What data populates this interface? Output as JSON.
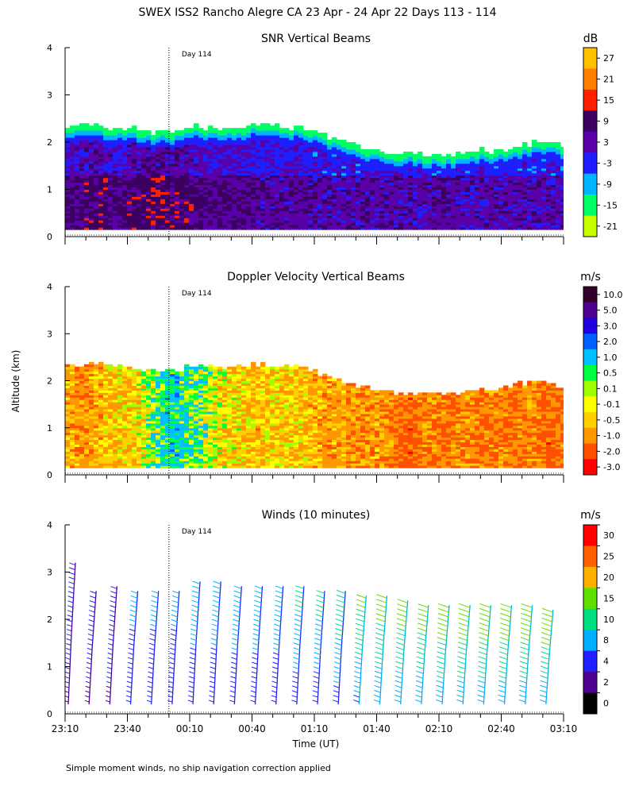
{
  "figure_title": "SWEX ISS2 Rancho Alegre CA  23 Apr - 24 Apr 22 Days 113 - 114",
  "ylabel": "Altitude (km)",
  "xlabel": "Time (UT)",
  "footnote": "Simple moment winds, no ship navigation correction applied",
  "day_marker": {
    "label": "Day 114",
    "time": "00:00"
  },
  "x_ticks": [
    "23:10",
    "23:40",
    "00:10",
    "00:40",
    "01:10",
    "01:40",
    "02:10",
    "02:40",
    "03:10"
  ],
  "y_ticks": [
    "0",
    "1",
    "2",
    "3",
    "4"
  ],
  "chart_data": [
    {
      "type": "heatmap",
      "title": "SNR Vertical Beams",
      "unit": "dB",
      "xlim": [
        "23:10",
        "03:10"
      ],
      "ylim": [
        0,
        4
      ],
      "colorbar": {
        "labels": [
          "27",
          "21",
          "15",
          "9",
          "3",
          "-3",
          "-9",
          "-15",
          "-21"
        ],
        "colors": [
          "#ffc000",
          "#ff8000",
          "#ff2000",
          "#3c0060",
          "#5a00a8",
          "#1e1eff",
          "#00b4ff",
          "#00ff64",
          "#c8ff00"
        ]
      },
      "echo_top_km": [
        2.3,
        2.35,
        2.3,
        2.3,
        2.25,
        2.2,
        2.15,
        2.3,
        2.3,
        2.25,
        2.25,
        2.35,
        2.3,
        2.3,
        2.25,
        2.1,
        2.0,
        1.85,
        1.8,
        1.75,
        1.75,
        1.7,
        1.7,
        1.75,
        1.8,
        1.8,
        1.9,
        1.95,
        1.95,
        1.85
      ],
      "dominant_db": [
        6,
        8,
        8,
        6,
        8,
        10,
        8,
        8,
        6,
        6,
        6,
        4,
        4,
        4,
        4,
        3,
        3,
        4,
        4,
        4,
        3,
        3,
        4,
        3,
        2,
        3,
        3,
        3,
        3,
        2
      ]
    },
    {
      "type": "heatmap",
      "title": "Doppler Velocity Vertical Beams",
      "unit": "m/s",
      "xlim": [
        "23:10",
        "03:10"
      ],
      "ylim": [
        0,
        4
      ],
      "colorbar": {
        "labels": [
          "10.0",
          "5.0",
          "3.0",
          "2.0",
          "1.0",
          "0.5",
          "0.1",
          "-0.1",
          "-0.5",
          "-1.0",
          "-2.0",
          "-3.0"
        ],
        "colors": [
          "#300028",
          "#500090",
          "#2000e0",
          "#0060ff",
          "#00c0ff",
          "#00ff40",
          "#a0ff00",
          "#ffff00",
          "#ffd000",
          "#ff9800",
          "#ff5000",
          "#ff0000"
        ]
      },
      "echo_top_km": [
        2.3,
        2.35,
        2.3,
        2.3,
        2.25,
        2.2,
        2.15,
        2.3,
        2.3,
        2.25,
        2.25,
        2.35,
        2.3,
        2.3,
        2.25,
        2.1,
        2.0,
        1.85,
        1.8,
        1.75,
        1.75,
        1.7,
        1.7,
        1.75,
        1.8,
        1.8,
        1.9,
        1.95,
        1.95,
        1.85
      ],
      "dominant_ms": [
        -0.8,
        -1.2,
        -0.8,
        -0.6,
        -0.5,
        0.3,
        1.0,
        0.5,
        0.2,
        -0.3,
        -0.5,
        -0.8,
        -0.5,
        -0.6,
        -0.7,
        -1.0,
        -1.0,
        -1.2,
        -1.0,
        -1.5,
        -1.8,
        -1.2,
        -1.5,
        -1.2,
        -1.5,
        -1.3,
        -1.5,
        -1.2,
        -1.8,
        -1.4
      ]
    },
    {
      "type": "barbs",
      "title": "Winds (10 minutes)",
      "unit": "m/s",
      "xlim": [
        "23:10",
        "03:10"
      ],
      "ylim": [
        0,
        4
      ],
      "colorbar": {
        "labels": [
          "30",
          "25",
          "20",
          "15",
          "10",
          "8",
          "4",
          "2",
          "0"
        ],
        "colors": [
          "#ff0000",
          "#ff6000",
          "#ffb000",
          "#60e000",
          "#00e080",
          "#00b0ff",
          "#2020ff",
          "#500090",
          "#000000"
        ]
      },
      "profiles": [
        {
          "time": "23:10",
          "top_km": 3.2,
          "speed_ms": 4
        },
        {
          "time": "23:20",
          "top_km": 2.6,
          "speed_ms": 4
        },
        {
          "time": "23:30",
          "top_km": 2.7,
          "speed_ms": 4
        },
        {
          "time": "23:40",
          "top_km": 2.6,
          "speed_ms": 5
        },
        {
          "time": "23:50",
          "top_km": 2.6,
          "speed_ms": 5
        },
        {
          "time": "00:00",
          "top_km": 2.6,
          "speed_ms": 5
        },
        {
          "time": "00:10",
          "top_km": 2.8,
          "speed_ms": 6
        },
        {
          "time": "00:20",
          "top_km": 2.8,
          "speed_ms": 6
        },
        {
          "time": "00:30",
          "top_km": 2.7,
          "speed_ms": 6
        },
        {
          "time": "00:40",
          "top_km": 2.7,
          "speed_ms": 6
        },
        {
          "time": "00:50",
          "top_km": 2.7,
          "speed_ms": 6
        },
        {
          "time": "01:00",
          "top_km": 2.7,
          "speed_ms": 7
        },
        {
          "time": "01:10",
          "top_km": 2.6,
          "speed_ms": 7
        },
        {
          "time": "01:20",
          "top_km": 2.6,
          "speed_ms": 8
        },
        {
          "time": "01:30",
          "top_km": 2.5,
          "speed_ms": 9
        },
        {
          "time": "01:40",
          "top_km": 2.5,
          "speed_ms": 10
        },
        {
          "time": "01:50",
          "top_km": 2.4,
          "speed_ms": 10
        },
        {
          "time": "02:00",
          "top_km": 2.3,
          "speed_ms": 10
        },
        {
          "time": "02:10",
          "top_km": 2.3,
          "speed_ms": 11
        },
        {
          "time": "02:20",
          "top_km": 2.3,
          "speed_ms": 11
        },
        {
          "time": "02:30",
          "top_km": 2.3,
          "speed_ms": 11
        },
        {
          "time": "02:40",
          "top_km": 2.3,
          "speed_ms": 11
        },
        {
          "time": "02:50",
          "top_km": 2.3,
          "speed_ms": 11
        },
        {
          "time": "03:00",
          "top_km": 2.2,
          "speed_ms": 11
        }
      ]
    }
  ]
}
